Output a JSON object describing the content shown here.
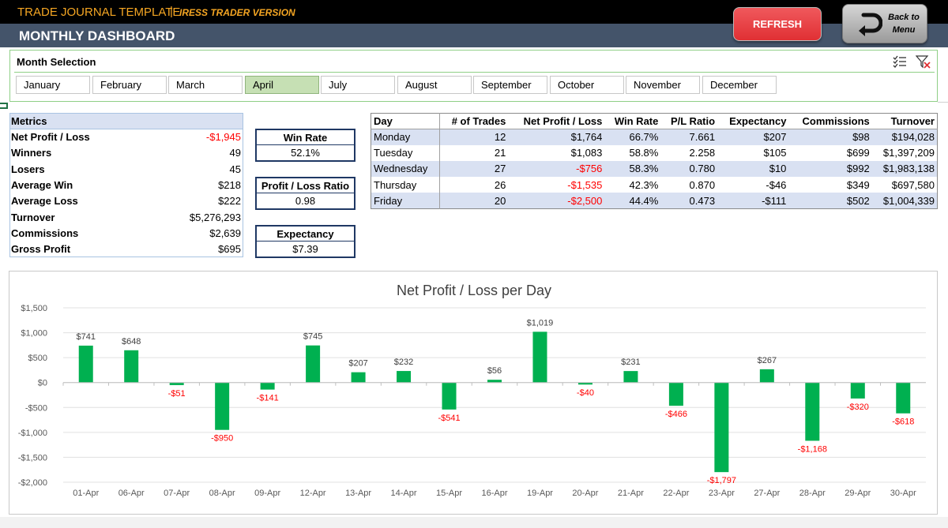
{
  "header": {
    "app_title": "TRADE JOURNAL TEMPLATE",
    "separator": "|",
    "app_subtitle": "IRESS TRADER VERSION",
    "page_title": "MONTHLY DASHBOARD",
    "refresh_label": "REFRESH",
    "back_label_line1": "Back to",
    "back_label_line2": "Menu"
  },
  "slicer": {
    "title": "Month Selection",
    "months": [
      "January",
      "February",
      "March",
      "April",
      "July",
      "August",
      "September",
      "October",
      "November",
      "December"
    ],
    "selected": "April"
  },
  "metrics": {
    "header": "Metrics",
    "rows": [
      {
        "label": "Net Profit / Loss",
        "value": "-$1,945",
        "negative": true
      },
      {
        "label": "Winners",
        "value": "49",
        "negative": false
      },
      {
        "label": "Losers",
        "value": "45",
        "negative": false
      },
      {
        "label": "Average Win",
        "value": "$218",
        "negative": false
      },
      {
        "label": "Average Loss",
        "value": "$222",
        "negative": false
      },
      {
        "label": "Turnover",
        "value": "$5,276,293",
        "negative": false
      },
      {
        "label": "Commissions",
        "value": "$2,639",
        "negative": false
      },
      {
        "label": "Gross Profit",
        "value": "$695",
        "negative": false
      }
    ]
  },
  "kpis": [
    {
      "label": "Win Rate",
      "value": "52.1%"
    },
    {
      "label": "Profit / Loss Ratio",
      "value": "0.98"
    },
    {
      "label": "Expectancy",
      "value": "$7.39"
    }
  ],
  "day_table": {
    "columns": [
      "Day",
      "# of Trades",
      "Net Profit / Loss",
      "Win Rate",
      "P/L Ratio",
      "Expectancy",
      "Commissions",
      "Turnover"
    ],
    "rows": [
      [
        "Monday",
        "12",
        "$1,764",
        "66.7%",
        "7.661",
        "$207",
        "$98",
        "$194,028"
      ],
      [
        "Tuesday",
        "21",
        "$1,083",
        "58.8%",
        "2.258",
        "$105",
        "$699",
        "$1,397,209"
      ],
      [
        "Wednesday",
        "27",
        "-$756",
        "58.3%",
        "0.780",
        "$10",
        "$992",
        "$1,983,138"
      ],
      [
        "Thursday",
        "26",
        "-$1,535",
        "42.3%",
        "0.870",
        "-$46",
        "$349",
        "$697,580"
      ],
      [
        "Friday",
        "20",
        "-$2,500",
        "44.4%",
        "0.473",
        "-$111",
        "$502",
        "$1,004,339"
      ]
    ]
  },
  "chart_data": {
    "type": "bar",
    "title": "Net Profit / Loss per Day",
    "categories": [
      "01-Apr",
      "06-Apr",
      "07-Apr",
      "08-Apr",
      "09-Apr",
      "12-Apr",
      "13-Apr",
      "14-Apr",
      "15-Apr",
      "16-Apr",
      "19-Apr",
      "20-Apr",
      "21-Apr",
      "22-Apr",
      "23-Apr",
      "27-Apr",
      "28-Apr",
      "29-Apr",
      "30-Apr"
    ],
    "values": [
      741,
      648,
      -51,
      -950,
      -141,
      745,
      207,
      232,
      -541,
      56,
      1019,
      -40,
      231,
      -466,
      -1797,
      267,
      -1168,
      -320,
      -618
    ],
    "data_labels": [
      "$741",
      "$648",
      "-$51",
      "-$950",
      "-$141",
      "$745",
      "$207",
      "$232",
      "-$541",
      "$56",
      "$1,019",
      "-$40",
      "$231",
      "-$466",
      "-$1,797",
      "$267",
      "-$1,168",
      "-$320",
      "-$618"
    ],
    "y_ticks": [
      1500,
      1000,
      500,
      0,
      -500,
      -1000,
      -1500,
      -2000
    ],
    "y_tick_labels": [
      "$1,500",
      "$1,000",
      "$500",
      "$0",
      "-$500",
      "-$1,000",
      "-$1,500",
      "-$2,000"
    ],
    "ylim": [
      -2000,
      1500
    ],
    "grid": true,
    "bar_color": "#00b050",
    "negative_label_color": "#ff0000"
  },
  "colors": {
    "accent_orange": "#f5a623",
    "header_slate": "#44546a",
    "refresh_red": "#e03034",
    "table_band": "#d9e1f2",
    "slicer_selected": "#c6e0b4",
    "kpi_border": "#1f3864"
  },
  "icons": {
    "back": "u-turn-arrow-icon",
    "multi_select": "multi-select-icon",
    "clear_filter": "clear-filter-icon"
  }
}
